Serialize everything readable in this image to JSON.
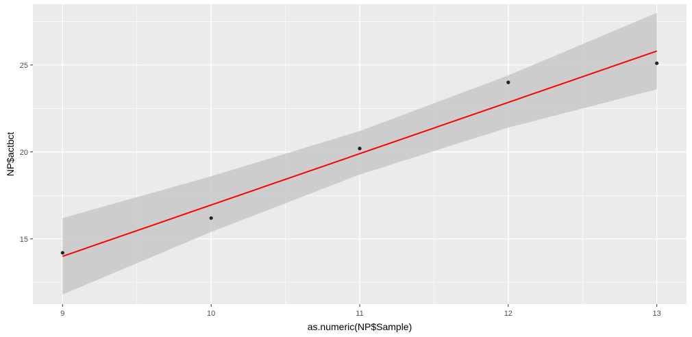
{
  "chart_data": {
    "type": "scatter",
    "title": "",
    "xlabel": "as.numeric(NP$Sample)",
    "ylabel": "NP$actbct",
    "xlim": [
      8.8,
      13.2
    ],
    "ylim": [
      11.25,
      28.5
    ],
    "x_ticks": [
      9,
      10,
      11,
      12,
      13
    ],
    "y_ticks": [
      15,
      20,
      25
    ],
    "x_tick_labels": [
      "9",
      "10",
      "11",
      "12",
      "13"
    ],
    "y_tick_labels": [
      "15",
      "20",
      "25"
    ],
    "grid": true,
    "legend": "none",
    "points": [
      {
        "x": 9,
        "y": 14.2
      },
      {
        "x": 10,
        "y": 16.2
      },
      {
        "x": 11,
        "y": 20.2
      },
      {
        "x": 12,
        "y": 24.0
      },
      {
        "x": 13,
        "y": 25.1
      }
    ],
    "fit_line": {
      "method": "lm",
      "x": [
        9,
        13
      ],
      "y": [
        14.0,
        25.8
      ]
    },
    "confidence_band": {
      "x": [
        9,
        10,
        11,
        12,
        13
      ],
      "lower": [
        11.8,
        15.4,
        18.7,
        21.4,
        23.6
      ],
      "upper": [
        16.2,
        18.6,
        21.2,
        24.4,
        28.0
      ]
    },
    "colors": {
      "panel_background": "#ebebeb",
      "grid_major": "#ffffff",
      "point": "#222222",
      "fit_line": "#ff0000",
      "band": "#c8c8c8"
    }
  }
}
